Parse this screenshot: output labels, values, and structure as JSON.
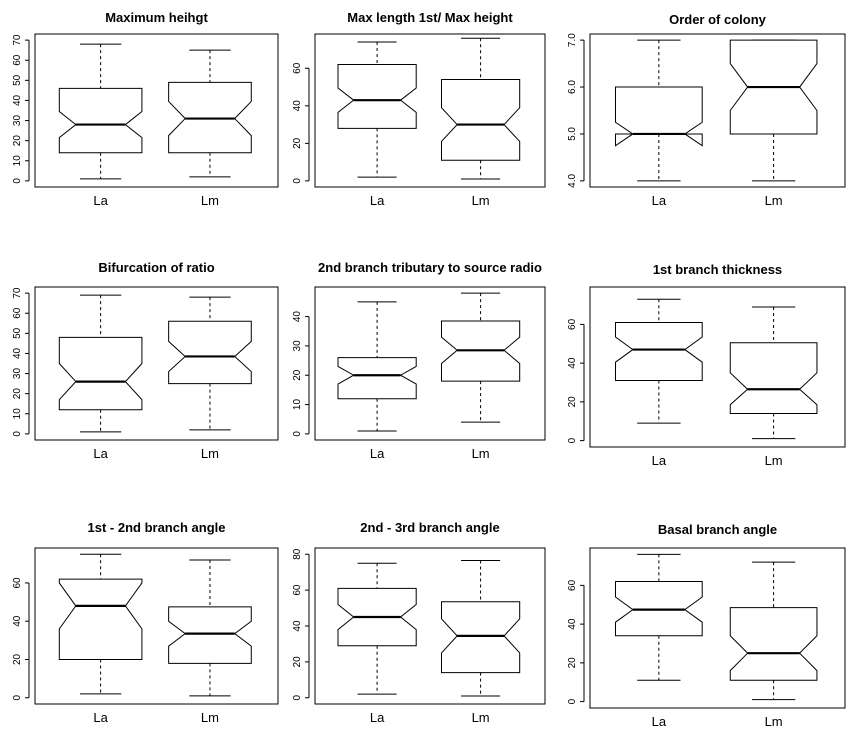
{
  "chart_data": [
    {
      "type": "box",
      "title": "Maximum heihgt",
      "categories": [
        "La",
        "Lm"
      ],
      "ylim": [
        0,
        70
      ],
      "yticks": [
        "0",
        "10",
        "20",
        "30",
        "40",
        "50",
        "60",
        "70"
      ],
      "ytick_values": [
        0,
        10,
        20,
        30,
        40,
        50,
        60,
        70
      ],
      "boxes": [
        {
          "name": "La",
          "min": 1,
          "q1": 14,
          "median": 28,
          "q3": 46,
          "max": 68,
          "notch": [
            21.5,
            34.5
          ]
        },
        {
          "name": "Lm",
          "min": 2,
          "q1": 14,
          "median": 31,
          "q3": 49,
          "max": 65,
          "notch": [
            22.5,
            39.5
          ]
        }
      ]
    },
    {
      "type": "box",
      "title": "Max length 1st/ Max height",
      "categories": [
        "La",
        "Lm"
      ],
      "ylim": [
        0,
        75
      ],
      "yticks": [
        "0",
        "20",
        "40",
        "60"
      ],
      "ytick_values": [
        0,
        20,
        40,
        60
      ],
      "boxes": [
        {
          "name": "La",
          "min": 2,
          "q1": 28,
          "median": 43,
          "q3": 62,
          "max": 74,
          "notch": [
            36.5,
            49.5
          ]
        },
        {
          "name": "Lm",
          "min": 1,
          "q1": 11,
          "median": 30,
          "q3": 54,
          "max": 76,
          "notch": [
            21,
            39
          ]
        }
      ]
    },
    {
      "type": "box",
      "title": "Order of colony",
      "categories": [
        "La",
        "Lm"
      ],
      "ylim": [
        4.0,
        7.0
      ],
      "yticks": [
        "4.0",
        "5.0",
        "6.0",
        "7.0"
      ],
      "ytick_values": [
        4,
        5,
        6,
        7
      ],
      "boxes": [
        {
          "name": "La",
          "min": 4.0,
          "q1": 5.0,
          "median": 5.0,
          "q3": 6.0,
          "max": 7.0,
          "notch": [
            4.75,
            5.25
          ]
        },
        {
          "name": "Lm",
          "min": 4.0,
          "q1": 5.0,
          "median": 6.0,
          "q3": 7.0,
          "max": 7.0,
          "notch": [
            5.5,
            6.5
          ]
        }
      ]
    },
    {
      "type": "box",
      "title": "Bifurcation of ratio",
      "categories": [
        "La",
        "Lm"
      ],
      "ylim": [
        0,
        70
      ],
      "yticks": [
        "0",
        "10",
        "20",
        "30",
        "40",
        "50",
        "60",
        "70"
      ],
      "ytick_values": [
        0,
        10,
        20,
        30,
        40,
        50,
        60,
        70
      ],
      "boxes": [
        {
          "name": "La",
          "min": 1,
          "q1": 12,
          "median": 26,
          "q3": 48,
          "max": 69,
          "notch": [
            17,
            35
          ]
        },
        {
          "name": "Lm",
          "min": 2,
          "q1": 25,
          "median": 38.5,
          "q3": 56,
          "max": 68,
          "notch": [
            31,
            46
          ]
        }
      ]
    },
    {
      "type": "box",
      "title": "2nd branch tributary to source radio",
      "categories": [
        "La",
        "Lm"
      ],
      "ylim": [
        0,
        48
      ],
      "yticks": [
        "0",
        "10",
        "20",
        "30",
        "40"
      ],
      "ytick_values": [
        0,
        10,
        20,
        30,
        40
      ],
      "boxes": [
        {
          "name": "La",
          "min": 1,
          "q1": 12,
          "median": 20,
          "q3": 26,
          "max": 45,
          "notch": [
            17,
            23
          ]
        },
        {
          "name": "Lm",
          "min": 4,
          "q1": 18,
          "median": 28.5,
          "q3": 38.5,
          "max": 48,
          "notch": [
            24,
            33
          ]
        }
      ]
    },
    {
      "type": "box",
      "title": "1st branch thickness",
      "categories": [
        "La",
        "Lm"
      ],
      "ylim": [
        0,
        76
      ],
      "yticks": [
        "0",
        "20",
        "40",
        "60"
      ],
      "ytick_values": [
        0,
        20,
        40,
        60
      ],
      "boxes": [
        {
          "name": "La",
          "min": 9,
          "q1": 31,
          "median": 47,
          "q3": 61,
          "max": 73,
          "notch": [
            40.5,
            53.5
          ]
        },
        {
          "name": "Lm",
          "min": 1,
          "q1": 14,
          "median": 26.5,
          "q3": 50.5,
          "max": 69,
          "notch": [
            18.5,
            35
          ]
        }
      ]
    },
    {
      "type": "box",
      "title": "1st - 2nd branch angle",
      "categories": [
        "La",
        "Lm"
      ],
      "ylim": [
        0,
        75
      ],
      "yticks": [
        "0",
        "20",
        "40",
        "60"
      ],
      "ytick_values": [
        0,
        20,
        40,
        60
      ],
      "boxes": [
        {
          "name": "La",
          "min": 2,
          "q1": 20,
          "median": 48,
          "q3": 62,
          "max": 75,
          "notch": [
            36,
            60
          ]
        },
        {
          "name": "Lm",
          "min": 1,
          "q1": 18,
          "median": 33.5,
          "q3": 47.5,
          "max": 72,
          "notch": [
            27,
            40
          ]
        }
      ]
    },
    {
      "type": "box",
      "title": "2nd - 3rd branch angle",
      "categories": [
        "La",
        "Lm"
      ],
      "ylim": [
        0,
        80
      ],
      "yticks": [
        "0",
        "20",
        "40",
        "60",
        "80"
      ],
      "ytick_values": [
        0,
        20,
        40,
        60,
        80
      ],
      "boxes": [
        {
          "name": "La",
          "min": 2,
          "q1": 29,
          "median": 45,
          "q3": 61,
          "max": 75,
          "notch": [
            38,
            52
          ]
        },
        {
          "name": "Lm",
          "min": 1,
          "q1": 14,
          "median": 34.5,
          "q3": 53.5,
          "max": 76.5,
          "notch": [
            25,
            44
          ]
        }
      ]
    },
    {
      "type": "box",
      "title": "Basal branch angle",
      "categories": [
        "La",
        "Lm"
      ],
      "ylim": [
        0,
        76
      ],
      "yticks": [
        "0",
        "20",
        "40",
        "60"
      ],
      "ytick_values": [
        0,
        20,
        40,
        60
      ],
      "boxes": [
        {
          "name": "La",
          "min": 11,
          "q1": 34,
          "median": 47.5,
          "q3": 62,
          "max": 76,
          "notch": [
            41,
            54
          ]
        },
        {
          "name": "Lm",
          "min": 1,
          "q1": 11,
          "median": 25,
          "q3": 48.5,
          "max": 72,
          "notch": [
            16,
            34
          ]
        }
      ]
    }
  ]
}
